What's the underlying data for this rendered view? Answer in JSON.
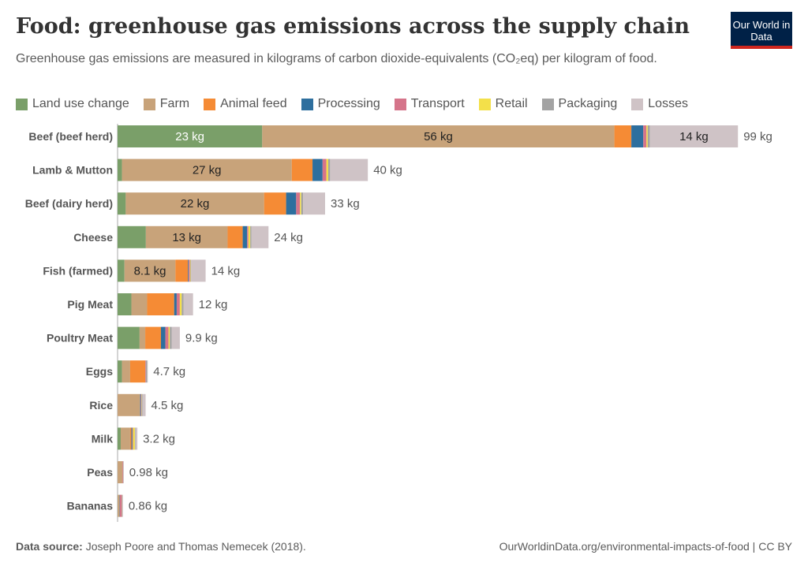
{
  "header": {
    "title": "Food: greenhouse gas emissions across the supply chain",
    "subtitle": "Greenhouse gas emissions are measured in kilograms of carbon dioxide-equivalents (CO₂eq) per kilogram of food.",
    "logo": "Our World in Data"
  },
  "footer": {
    "source_label": "Data source:",
    "source": " Joseph Poore and Thomas Nemecek (2018).",
    "url": "OurWorldinData.org/environmental-impacts-of-food | CC BY"
  },
  "chart_data": {
    "type": "bar",
    "orientation": "horizontal",
    "stacked": true,
    "unit": "kg",
    "legend_position": "top",
    "grid": false,
    "xlim": [
      0,
      99
    ],
    "categories": [
      "Beef (beef herd)",
      "Lamb & Mutton",
      "Beef (dairy herd)",
      "Cheese",
      "Fish (farmed)",
      "Pig Meat",
      "Poultry Meat",
      "Eggs",
      "Rice",
      "Milk",
      "Peas",
      "Bananas"
    ],
    "totals": [
      "99 kg",
      "40 kg",
      "33 kg",
      "24 kg",
      "14 kg",
      "12 kg",
      "9.9 kg",
      "4.7 kg",
      "4.5 kg",
      "3.2 kg",
      "0.98 kg",
      "0.86 kg"
    ],
    "series": [
      {
        "name": "Land use change",
        "color": "#7a9f69",
        "values": [
          23,
          0.7,
          1.3,
          4.5,
          1.1,
          2.2,
          3.5,
          0.7,
          0,
          0.5,
          0,
          0.02
        ]
      },
      {
        "name": "Farm",
        "color": "#c8a37a",
        "values": [
          56,
          27,
          22,
          13,
          8.1,
          2.5,
          0.9,
          1.3,
          3.6,
          1.5,
          0.8,
          0.3
        ]
      },
      {
        "name": "Animal feed",
        "color": "#f58b35",
        "values": [
          2.7,
          3.3,
          3.5,
          2.4,
          2.0,
          4.3,
          2.5,
          2.4,
          0,
          0.2,
          0,
          0
        ]
      },
      {
        "name": "Processing",
        "color": "#2e6f9e",
        "values": [
          1.9,
          1.6,
          1.6,
          0.7,
          0.1,
          0.4,
          0.7,
          0,
          0.1,
          0.15,
          0,
          0.05
        ]
      },
      {
        "name": "Transport",
        "color": "#d5748a",
        "values": [
          0.5,
          0.6,
          0.6,
          0.2,
          0.2,
          0.5,
          0.5,
          0.1,
          0.1,
          0.1,
          0.1,
          0.3
        ]
      },
      {
        "name": "Retail",
        "color": "#f3e04a",
        "values": [
          0.2,
          0.3,
          0.2,
          0.3,
          0.1,
          0.3,
          0.2,
          0,
          0.06,
          0.3,
          0,
          0.02
        ]
      },
      {
        "name": "Packaging",
        "color": "#a3a3a3",
        "values": [
          0.35,
          0.3,
          0.3,
          0.2,
          0.1,
          0.3,
          0.3,
          0.2,
          0.1,
          0.1,
          0.04,
          0.07
        ]
      },
      {
        "name": "Losses",
        "color": "#cfc3c6",
        "values": [
          14,
          6,
          3.5,
          2.7,
          2.3,
          1.5,
          1.3,
          0.1,
          0.5,
          0.3,
          0.04,
          0.1
        ]
      }
    ],
    "segment_labels": [
      {
        "row": 0,
        "series": 0,
        "text": "23 kg"
      },
      {
        "row": 0,
        "series": 1,
        "text": "56 kg"
      },
      {
        "row": 0,
        "series": 7,
        "text": "14 kg"
      },
      {
        "row": 1,
        "series": 1,
        "text": "27 kg"
      },
      {
        "row": 2,
        "series": 1,
        "text": "22 kg"
      },
      {
        "row": 3,
        "series": 1,
        "text": "13 kg"
      },
      {
        "row": 4,
        "series": 1,
        "text": "8.1 kg"
      }
    ]
  }
}
